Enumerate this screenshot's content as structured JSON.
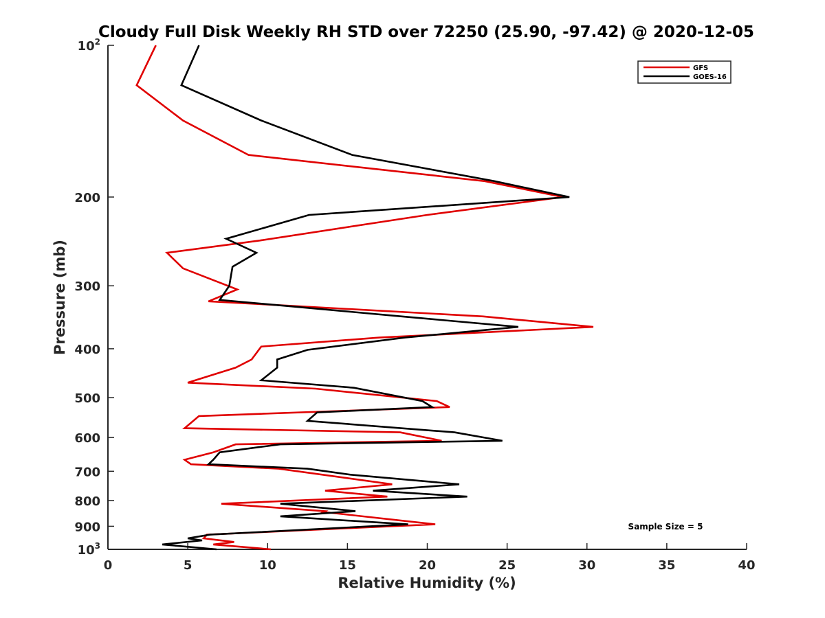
{
  "chart_data": {
    "type": "line",
    "title": "Cloudy Full Disk Weekly RH STD over 72250 (25.90, -97.42) @ 2020-12-05",
    "xlabel": "Relative Humidity (%)",
    "ylabel": "Pressure (mb)",
    "xlim": [
      0,
      40
    ],
    "ylim": [
      100,
      1000
    ],
    "y_scale": "log",
    "y_reversed": true,
    "x_ticks": [
      0,
      5,
      10,
      15,
      20,
      25,
      30,
      35,
      40
    ],
    "y_ticks": [
      {
        "value": 100,
        "base": "10",
        "sup": "2"
      },
      {
        "value": 200,
        "label": "200"
      },
      {
        "value": 300,
        "label": "300"
      },
      {
        "value": 400,
        "label": "400"
      },
      {
        "value": 500,
        "label": "500"
      },
      {
        "value": 600,
        "label": "600"
      },
      {
        "value": 700,
        "label": "700"
      },
      {
        "value": 800,
        "label": "800"
      },
      {
        "value": 900,
        "label": "900"
      },
      {
        "value": 1000,
        "base": "10",
        "sup": "3"
      }
    ],
    "grid": false,
    "legend_position": "top-right",
    "annotation": "Sample Size = 5",
    "series": [
      {
        "name": "GFS",
        "color": "#e00000",
        "points": [
          [
            3.0,
            100
          ],
          [
            1.8,
            120
          ],
          [
            4.7,
            141
          ],
          [
            8.8,
            165
          ],
          [
            23.6,
            186
          ],
          [
            28.5,
            200
          ],
          [
            20.0,
            217
          ],
          [
            9.5,
            244
          ],
          [
            3.7,
            258
          ],
          [
            4.7,
            277
          ],
          [
            8.1,
            305
          ],
          [
            6.3,
            322
          ],
          [
            23.5,
            345
          ],
          [
            30.4,
            362
          ],
          [
            17.0,
            380
          ],
          [
            9.6,
            396
          ],
          [
            9.0,
            420
          ],
          [
            8.0,
            436
          ],
          [
            5.0,
            467
          ],
          [
            13.0,
            480
          ],
          [
            20.6,
            508
          ],
          [
            21.4,
            522
          ],
          [
            5.7,
            544
          ],
          [
            4.8,
            575
          ],
          [
            18.3,
            586
          ],
          [
            20.9,
            609
          ],
          [
            8.0,
            619
          ],
          [
            6.6,
            642
          ],
          [
            4.8,
            664
          ],
          [
            5.2,
            678
          ],
          [
            10.7,
            692
          ],
          [
            17.8,
            743
          ],
          [
            13.6,
            765
          ],
          [
            17.5,
            786
          ],
          [
            7.1,
            812
          ],
          [
            13.6,
            840
          ],
          [
            13.5,
            843
          ],
          [
            20.5,
            892
          ],
          [
            16.0,
            905
          ],
          [
            6.2,
            935
          ],
          [
            6.0,
            951
          ],
          [
            7.9,
            967
          ],
          [
            6.6,
            978
          ],
          [
            10.2,
            1000
          ]
        ]
      },
      {
        "name": "GOES-16",
        "color": "#000000",
        "points": [
          [
            5.7,
            100
          ],
          [
            4.6,
            120
          ],
          [
            9.6,
            141
          ],
          [
            15.3,
            165
          ],
          [
            24.2,
            186
          ],
          [
            28.9,
            200
          ],
          [
            12.6,
            217
          ],
          [
            7.4,
            242
          ],
          [
            9.3,
            258
          ],
          [
            7.8,
            275
          ],
          [
            7.6,
            300
          ],
          [
            7.0,
            320
          ],
          [
            18.4,
            345
          ],
          [
            25.7,
            362
          ],
          [
            18.6,
            380
          ],
          [
            12.5,
            402
          ],
          [
            10.6,
            420
          ],
          [
            10.6,
            436
          ],
          [
            9.6,
            462
          ],
          [
            15.4,
            478
          ],
          [
            19.7,
            508
          ],
          [
            20.3,
            522
          ],
          [
            13.1,
            535
          ],
          [
            12.5,
            556
          ],
          [
            21.7,
            586
          ],
          [
            24.7,
            609
          ],
          [
            10.8,
            619
          ],
          [
            7.0,
            642
          ],
          [
            6.6,
            664
          ],
          [
            6.3,
            678
          ],
          [
            12.5,
            692
          ],
          [
            15.2,
            711
          ],
          [
            22.0,
            743
          ],
          [
            16.6,
            765
          ],
          [
            22.5,
            786
          ],
          [
            10.8,
            812
          ],
          [
            10.8,
            812
          ],
          [
            15.5,
            840
          ],
          [
            10.8,
            860
          ],
          [
            18.8,
            892
          ],
          [
            6.4,
            935
          ],
          [
            5.0,
            951
          ],
          [
            5.9,
            960
          ],
          [
            3.4,
            978
          ],
          [
            6.8,
            1000
          ]
        ]
      }
    ]
  }
}
